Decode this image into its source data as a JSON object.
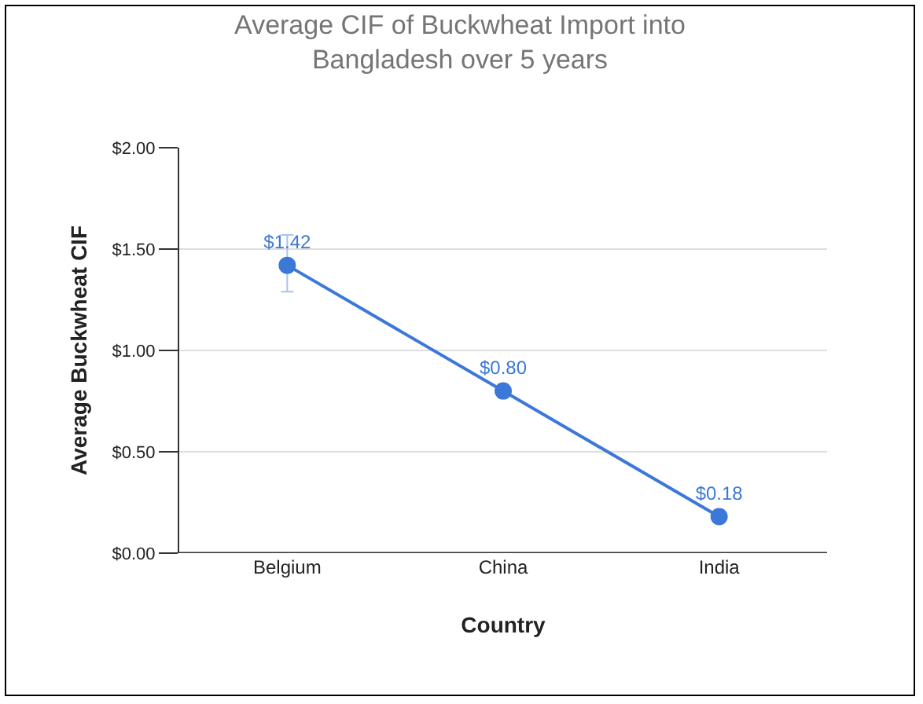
{
  "chart_data": {
    "type": "line",
    "title": "Average CIF of Buckwheat Import into\nBangladesh over 5 years",
    "xlabel": "Country",
    "ylabel": "Average Buckwheat CIF",
    "categories": [
      "Belgium",
      "China",
      "India"
    ],
    "series": [
      {
        "color": "#3c78d8",
        "values": [
          1.42,
          0.8,
          0.18
        ],
        "value_labels": [
          "$1.42",
          "$0.80",
          "$0.18"
        ],
        "errors": [
          [
            1.29,
            1.57
          ],
          null,
          null
        ]
      }
    ],
    "ylim": [
      0,
      2
    ],
    "yticks": [
      {
        "value": 0,
        "label": "$0.00"
      },
      {
        "value": 0.5,
        "label": "$0.50"
      },
      {
        "value": 1,
        "label": "$1.00"
      },
      {
        "value": 1.5,
        "label": "$1.50"
      },
      {
        "value": 2,
        "label": "$2.00"
      }
    ],
    "grid": "y",
    "marker": "circle",
    "line_style": "solid",
    "legend": false
  }
}
